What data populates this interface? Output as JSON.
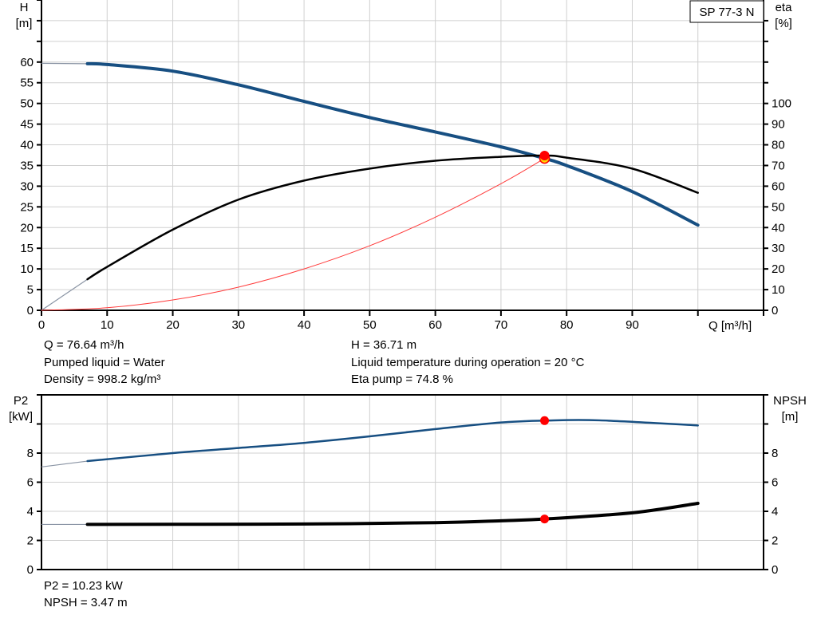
{
  "colors": {
    "head": "#174f82",
    "eta": "#000000",
    "system": "#ff3b3b",
    "p2": "#174f82",
    "npsh": "#000000",
    "duty_point": "#ff0000",
    "grid": "#d0d0d0"
  },
  "legend_box": "SP 77-3 N",
  "info": {
    "q": "Q = 76.64 m³/h",
    "liquid": "Pumped liquid = Water",
    "density": "Density = 998.2 kg/m³",
    "h": "H = 36.71 m",
    "temp": "Liquid temperature during operation = 20 °C",
    "eta": "Eta pump = 74.8 %",
    "p2": "P2 = 10.23 kW",
    "npsh": "NPSH = 3.47 m"
  },
  "chart_data": [
    {
      "type": "line",
      "xlabel": "Q [m³/h]",
      "ylabel": "H\n[m]",
      "y2label": "eta\n[%]",
      "xlim": [
        0,
        110
      ],
      "ylim": [
        0,
        75
      ],
      "y2lim": [
        0,
        150
      ],
      "xticks": [
        0,
        10,
        20,
        30,
        40,
        50,
        60,
        70,
        80,
        90
      ],
      "yticks": [
        0,
        5,
        10,
        15,
        20,
        25,
        30,
        35,
        40,
        45,
        50,
        55,
        60
      ],
      "y2ticks": [
        0,
        10,
        20,
        30,
        40,
        50,
        60,
        70,
        80,
        90,
        100
      ],
      "grid": true,
      "series": [
        {
          "id": "head",
          "axis": "left",
          "x": [
            7,
            10,
            20,
            30,
            40,
            50,
            60,
            70,
            76.64,
            80,
            90,
            100
          ],
          "y": [
            59.6,
            59.4,
            57.8,
            54.5,
            50.5,
            46.6,
            43.1,
            39.5,
            36.71,
            35.0,
            28.7,
            20.6
          ],
          "extrapolated": {
            "x": [
              0,
              7
            ],
            "y": [
              59.7,
              59.6
            ]
          }
        },
        {
          "id": "eta",
          "axis": "right",
          "x": [
            7,
            10,
            20,
            30,
            40,
            50,
            60,
            70,
            76.64,
            80,
            90,
            100
          ],
          "y": [
            15,
            21,
            39,
            53.5,
            62.7,
            68.5,
            72.3,
            74.2,
            74.8,
            73.8,
            68.5,
            56.8
          ],
          "extrapolated": {
            "x": [
              0,
              7
            ],
            "y": [
              0,
              15
            ]
          }
        },
        {
          "id": "system",
          "axis": "left",
          "x": [
            0,
            10,
            20,
            30,
            40,
            50,
            60,
            70,
            76.64
          ],
          "y": [
            0,
            0.62,
            2.5,
            5.6,
            10,
            15.6,
            22.5,
            30.6,
            36.71
          ]
        }
      ],
      "duty_point": {
        "q": 76.64,
        "h": 36.71,
        "eta": 74.8
      }
    },
    {
      "type": "line",
      "ylabel": "P2\n[kW]",
      "y2label": "NPSH\n[m]",
      "xlim": [
        0,
        110
      ],
      "ylim": [
        0,
        12
      ],
      "y2lim": [
        0,
        12
      ],
      "yticks": [
        0,
        2,
        4,
        6,
        8
      ],
      "y2ticks": [
        0,
        2,
        4,
        6,
        8
      ],
      "grid": true,
      "series": [
        {
          "id": "p2",
          "axis": "left",
          "x": [
            7,
            20,
            30,
            40,
            50,
            60,
            70,
            76.64,
            85,
            100
          ],
          "y": [
            7.45,
            8.0,
            8.35,
            8.7,
            9.15,
            9.65,
            10.1,
            10.23,
            10.25,
            9.9
          ],
          "extrapolated": {
            "x": [
              0,
              7
            ],
            "y": [
              7.05,
              7.45
            ]
          }
        },
        {
          "id": "npsh",
          "axis": "right",
          "x": [
            7,
            20,
            40,
            60,
            70,
            76.64,
            90,
            100
          ],
          "y": [
            3.1,
            3.11,
            3.13,
            3.22,
            3.35,
            3.47,
            3.9,
            4.55
          ],
          "extrapolated": {
            "x": [
              0,
              7
            ],
            "y": [
              3.1,
              3.1
            ]
          }
        }
      ],
      "duty_point": {
        "q": 76.64,
        "p2": 10.23,
        "npsh": 3.47
      }
    }
  ]
}
